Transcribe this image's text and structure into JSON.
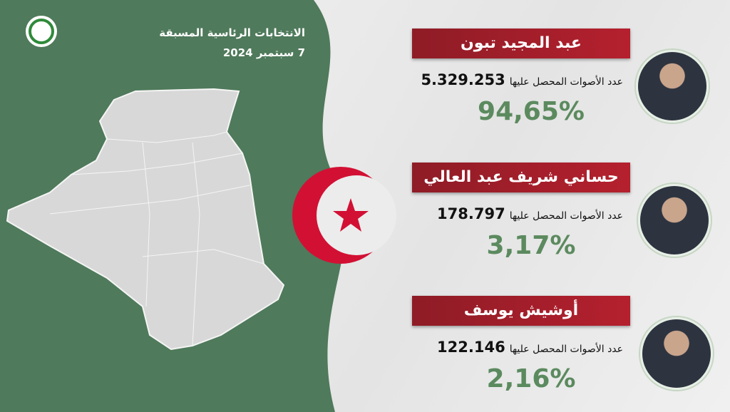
{
  "header": {
    "title": "الانتخابات الرئاسية المسبقة",
    "date": "7 سبتمبر 2024"
  },
  "candidates": [
    {
      "name": "عبد المجيد تبون",
      "votes_label": "عدد الأصوات المحصل عليها",
      "votes": "5.329.253",
      "percent": "94,65%"
    },
    {
      "name": "حساني شريف عبد العالي",
      "votes_label": "عدد الأصوات المحصل عليها",
      "votes": "178.797",
      "percent": "3,17%"
    },
    {
      "name": "أوشيش يوسف",
      "votes_label": "عدد الأصوات المحصل عليها",
      "votes": "122.146",
      "percent": "2,16%"
    }
  ]
}
